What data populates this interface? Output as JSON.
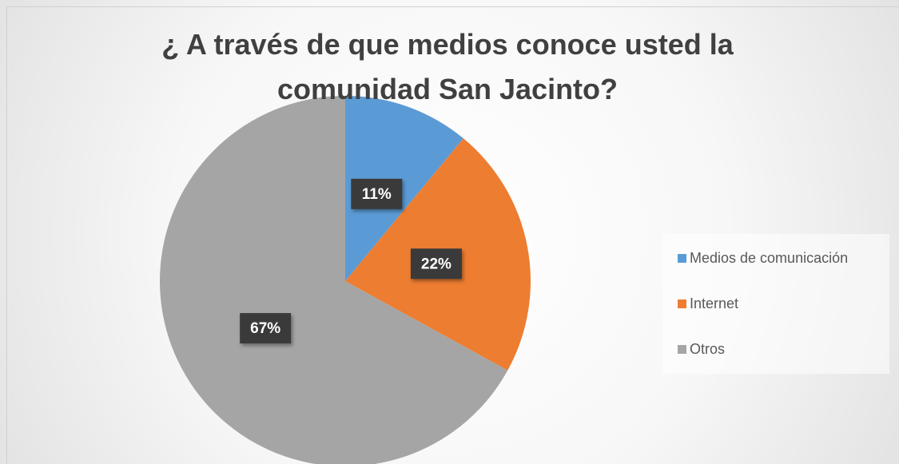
{
  "chart_data": {
    "type": "pie",
    "title": "¿ A través de que medios conoce usted la comunidad San Jacinto?",
    "categories": [
      "Medios de comunicación",
      "Internet",
      "Otros"
    ],
    "values": [
      11,
      22,
      67
    ],
    "value_labels": [
      "11%",
      "22%",
      "67%"
    ],
    "colors": [
      "#5b9bd5",
      "#ed7d31",
      "#a5a5a5"
    ],
    "legend": "right"
  }
}
